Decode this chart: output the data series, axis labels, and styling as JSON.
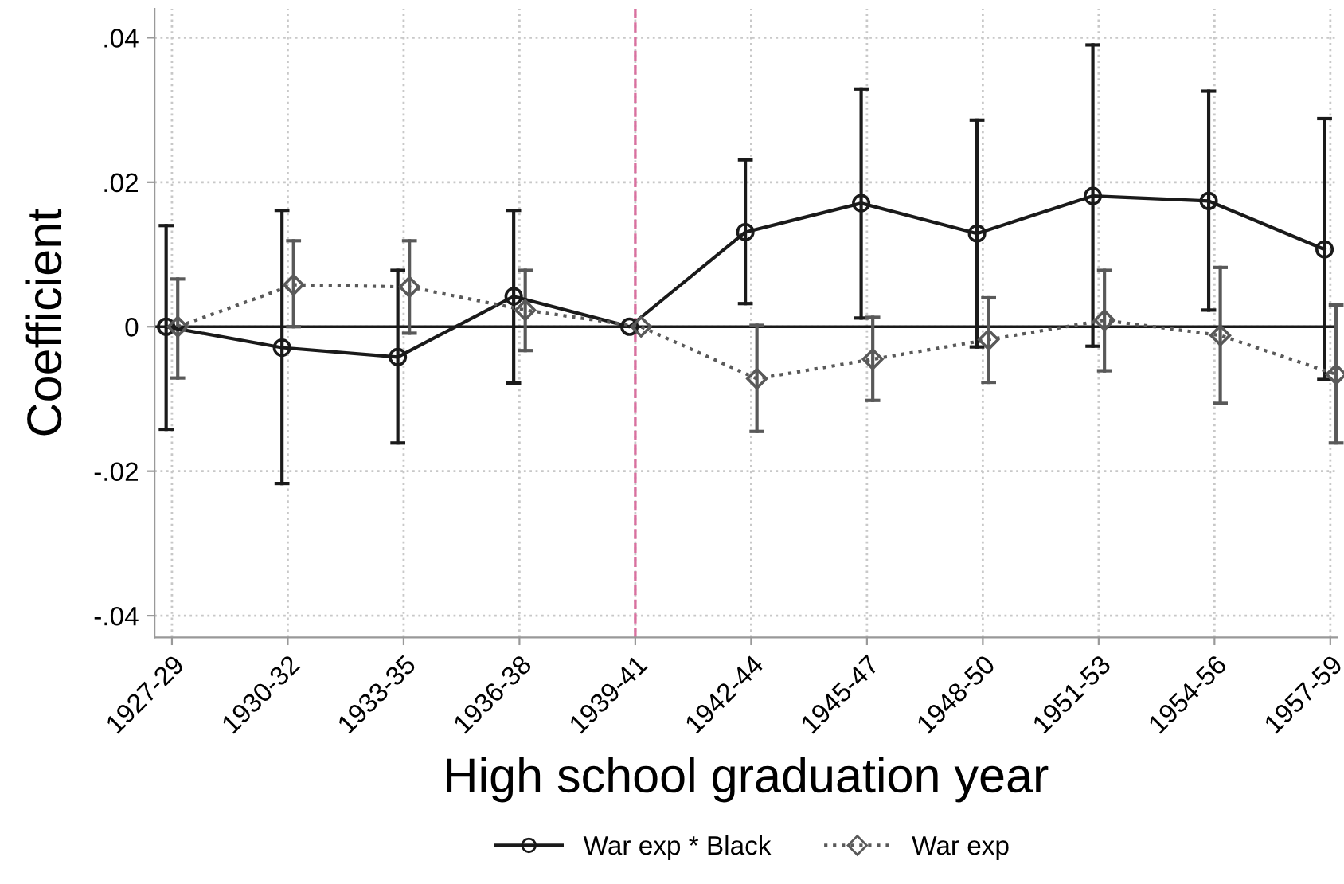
{
  "chart_data": {
    "type": "line",
    "xlabel": "High school graduation year",
    "ylabel": "Coefficient",
    "categories": [
      "1927-29",
      "1930-32",
      "1933-35",
      "1936-38",
      "1939-41",
      "1942-44",
      "1945-47",
      "1948-50",
      "1951-53",
      "1954-56",
      "1957-59"
    ],
    "series": [
      {
        "name": "War exp * Black",
        "color": "#1a1a1a",
        "marker": "circle",
        "line_style": "solid",
        "values": [
          0,
          -0.0029,
          -0.0042,
          0.0042,
          0,
          0.0131,
          0.0171,
          0.0129,
          0.0181,
          0.0174,
          0.0107
        ],
        "errors": [
          [
            -0.0142,
            0.014
          ],
          [
            -0.0217,
            0.0161
          ],
          [
            -0.0161,
            0.0078
          ],
          [
            -0.0078,
            0.0161
          ],
          null,
          [
            0.0032,
            0.0231
          ],
          [
            0.0012,
            0.0329
          ],
          [
            -0.0028,
            0.0286
          ],
          [
            -0.0027,
            0.039
          ],
          [
            0.0023,
            0.0326
          ],
          [
            -0.0073,
            0.0288
          ]
        ]
      },
      {
        "name": "War exp",
        "color": "#595959",
        "marker": "diamond",
        "line_style": "dotted",
        "values": [
          0,
          0.0058,
          0.0055,
          0.0023,
          0,
          -0.0072,
          -0.0045,
          -0.0018,
          0.0009,
          -0.0012,
          -0.0066
        ],
        "errors": [
          [
            -0.0071,
            0.0066
          ],
          [
            0,
            0.0119
          ],
          [
            -0.0009,
            0.0119
          ],
          [
            -0.0033,
            0.0078
          ],
          null,
          [
            -0.0145,
            0.0002
          ],
          [
            -0.0102,
            0.0013
          ],
          [
            -0.0077,
            0.004
          ],
          [
            -0.0061,
            0.0078
          ],
          [
            -0.0106,
            0.0082
          ],
          [
            -0.0161,
            0.003
          ]
        ]
      }
    ],
    "ylim": [
      -0.043,
      0.044
    ],
    "yticks": [
      {
        "value": -0.04,
        "label": "-.04"
      },
      {
        "value": -0.02,
        "label": "-.02"
      },
      0,
      {
        "value": 0.02,
        "label": ".02"
      },
      {
        "value": 0.04,
        "label": ".04"
      }
    ],
    "ref_lines": [
      {
        "axis": "x",
        "value": "1939-41",
        "color": "#d9709f",
        "line_style": "dashed"
      },
      {
        "axis": "y",
        "value": 0,
        "color": "#1a1a1a",
        "line_style": "solid"
      }
    ],
    "grid": true,
    "legend": "bottom"
  }
}
